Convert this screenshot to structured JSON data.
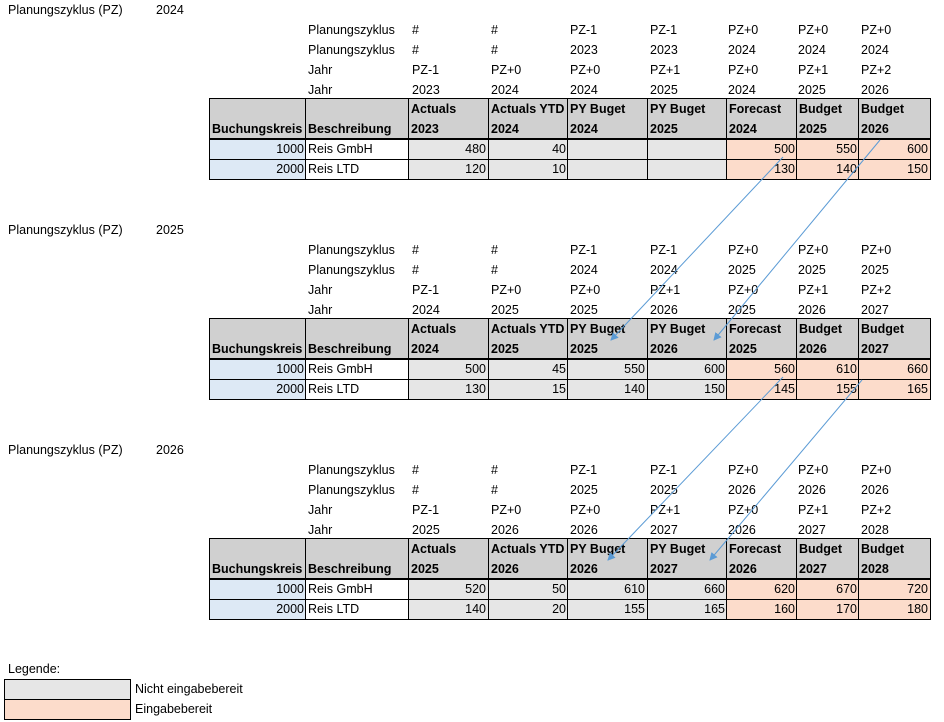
{
  "cycles": [
    {
      "label": "Planungszyklus (PZ)",
      "year": "2024",
      "meta": [
        [
          "Planungszyklus",
          "#",
          "#",
          "PZ-1",
          "PZ-1",
          "PZ+0",
          "PZ+0",
          "PZ+0"
        ],
        [
          "Planungszyklus",
          "#",
          "#",
          "2023",
          "2023",
          "2024",
          "2024",
          "2024"
        ],
        [
          "Jahr",
          "PZ-1",
          "PZ+0",
          "PZ+0",
          "PZ+1",
          "PZ+0",
          "PZ+1",
          "PZ+2"
        ],
        [
          "Jahr",
          "2023",
          "2024",
          "2024",
          "2025",
          "2024",
          "2025",
          "2026"
        ]
      ],
      "headers_top": [
        "",
        "",
        "Actuals",
        "Actuals YTD",
        "PY Buget",
        "PY Buget",
        "Forecast",
        "Budget",
        "Budget"
      ],
      "headers_bottom": [
        "Buchungskreis",
        "Beschreibung",
        "2023",
        "2024",
        "2024",
        "2025",
        "2024",
        "2025",
        "2026"
      ],
      "rows": [
        [
          "1000",
          "Reis GmbH",
          "480",
          "40",
          "",
          "",
          "500",
          "550",
          "600"
        ],
        [
          "2000",
          "Reis LTD",
          "120",
          "10",
          "",
          "",
          "130",
          "140",
          "150"
        ]
      ]
    },
    {
      "label": "Planungszyklus (PZ)",
      "year": "2025",
      "meta": [
        [
          "Planungszyklus",
          "#",
          "#",
          "PZ-1",
          "PZ-1",
          "PZ+0",
          "PZ+0",
          "PZ+0"
        ],
        [
          "Planungszyklus",
          "#",
          "#",
          "2024",
          "2024",
          "2025",
          "2025",
          "2025"
        ],
        [
          "Jahr",
          "PZ-1",
          "PZ+0",
          "PZ+0",
          "PZ+1",
          "PZ+0",
          "PZ+1",
          "PZ+2"
        ],
        [
          "Jahr",
          "2024",
          "2025",
          "2025",
          "2026",
          "2025",
          "2026",
          "2027"
        ]
      ],
      "headers_top": [
        "",
        "",
        "Actuals",
        "Actuals YTD",
        "PY Buget",
        "PY Buget",
        "Forecast",
        "Budget",
        "Budget"
      ],
      "headers_bottom": [
        "Buchungskreis",
        "Beschreibung",
        "2024",
        "2025",
        "2025",
        "2026",
        "2025",
        "2026",
        "2027"
      ],
      "rows": [
        [
          "1000",
          "Reis GmbH",
          "500",
          "45",
          "550",
          "600",
          "560",
          "610",
          "660"
        ],
        [
          "2000",
          "Reis LTD",
          "130",
          "15",
          "140",
          "150",
          "145",
          "155",
          "165"
        ]
      ]
    },
    {
      "label": "Planungszyklus (PZ)",
      "year": "2026",
      "meta": [
        [
          "Planungszyklus",
          "#",
          "#",
          "PZ-1",
          "PZ-1",
          "PZ+0",
          "PZ+0",
          "PZ+0"
        ],
        [
          "Planungszyklus",
          "#",
          "#",
          "2025",
          "2025",
          "2026",
          "2026",
          "2026"
        ],
        [
          "Jahr",
          "PZ-1",
          "PZ+0",
          "PZ+0",
          "PZ+1",
          "PZ+0",
          "PZ+1",
          "PZ+2"
        ],
        [
          "Jahr",
          "2025",
          "2026",
          "2026",
          "2027",
          "2026",
          "2027",
          "2028"
        ]
      ],
      "headers_top": [
        "",
        "",
        "Actuals",
        "Actuals YTD",
        "PY Buget",
        "PY Buget",
        "Forecast",
        "Budget",
        "Budget"
      ],
      "headers_bottom": [
        "Buchungskreis",
        "Beschreibung",
        "2025",
        "2026",
        "2026",
        "2027",
        "2026",
        "2027",
        "2028"
      ],
      "rows": [
        [
          "1000",
          "Reis GmbH",
          "520",
          "50",
          "610",
          "660",
          "620",
          "670",
          "720"
        ],
        [
          "2000",
          "Reis LTD",
          "140",
          "20",
          "155",
          "165",
          "160",
          "170",
          "180"
        ]
      ]
    }
  ],
  "legend": {
    "title": "Legende:",
    "items": [
      {
        "label": "Nicht eingabebereit",
        "color": "#e6e6e6"
      },
      {
        "label": "Eingabebereit",
        "color": "#fcdccb"
      }
    ]
  },
  "colors": {
    "header": "#d0d0d0",
    "key_column": "#dde9f5",
    "not_editable": "#e6e6e6",
    "editable": "#fcdccb",
    "arrow": "#5b9bd5"
  }
}
